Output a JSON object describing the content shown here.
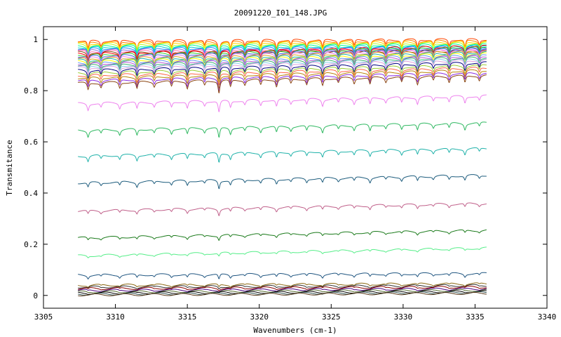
{
  "chart_data": {
    "type": "line",
    "title": "20091220_I01_148.JPG",
    "xlabel": "Wavenumbers (cm-1)",
    "ylabel": "Transmitance",
    "xlim": [
      3305,
      3340
    ],
    "ylim": [
      -0.05,
      1.05
    ],
    "x_ticks": [
      "3305",
      "3310",
      "3315",
      "3320",
      "3325",
      "3330",
      "3335",
      "3340"
    ],
    "y_ticks": [
      "0",
      "0.2",
      "0.4",
      "0.6",
      "0.8",
      "1"
    ],
    "x_range_data": [
      3307.4,
      3335.8
    ],
    "grid": false,
    "legend": "none",
    "absorption_lines": [
      3308.1,
      3309.0,
      3310.3,
      3311.5,
      3312.7,
      3313.9,
      3315.0,
      3316.2,
      3317.2,
      3318.0,
      3319.0,
      3320.1,
      3321.2,
      3322.2,
      3323.3,
      3324.4,
      3325.5,
      3326.6,
      3327.7,
      3328.8,
      3329.9,
      3331.0,
      3332.1,
      3333.2,
      3334.3,
      3335.3
    ],
    "series_baselines": [
      0.995,
      0.99,
      0.985,
      0.98,
      0.975,
      0.97,
      0.965,
      0.96,
      0.955,
      0.95,
      0.945,
      0.94,
      0.935,
      0.93,
      0.925,
      0.92,
      0.915,
      0.91,
      0.905,
      0.9,
      0.895,
      0.89,
      0.88,
      0.87,
      0.86,
      0.85,
      0.84,
      0.83,
      0.75,
      0.645,
      0.545,
      0.44,
      0.33,
      0.225,
      0.155,
      0.08,
      0.04,
      0.033,
      0.027,
      0.02,
      0.014,
      0.009,
      0.005,
      0.002
    ],
    "colors": [
      "#ff4500",
      "#ff8c00",
      "#ffd700",
      "#adff2f",
      "#00fa9a",
      "#00ced1",
      "#1e90ff",
      "#9370db",
      "#ff69b4",
      "#8b4513",
      "#ff0000",
      "#32cd32",
      "#4169e1",
      "#ee82ee",
      "#daa520",
      "#20b2aa",
      "#ffff00",
      "#6495ed",
      "#ba55d3",
      "#3cb371",
      "#87ceeb",
      "#dda0dd",
      "#000080",
      "#9acd32",
      "#ff6347",
      "#b8860b",
      "#8a2be2",
      "#8b4513",
      "#ee82ee",
      "#2eb860",
      "#20b2aa",
      "#1d5c7d",
      "#c0608a",
      "#1a7a1a",
      "#55ee88",
      "#1f5580",
      "#8b6914",
      "#333333",
      "#8b0000",
      "#4b0082",
      "#556b2f",
      "#000000",
      "#2f4f4f",
      "#5a3a1a"
    ]
  }
}
